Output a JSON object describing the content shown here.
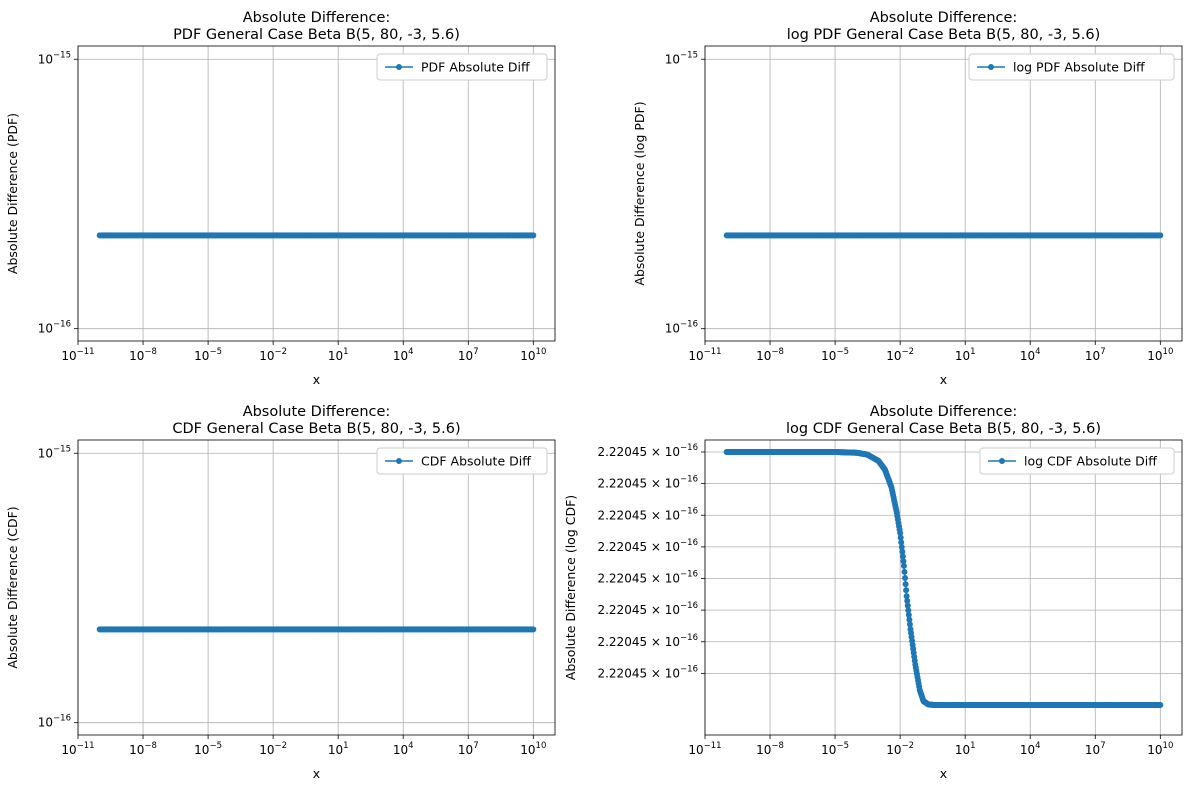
{
  "chart_data": [
    {
      "type": "line",
      "title_line1": "Absolute Difference:",
      "title_line2": "PDF General Case Beta B(5, 80, -3, 5.6)",
      "xlabel": "x",
      "ylabel": "Absolute Difference (PDF)",
      "xscale": "log",
      "yscale": "log",
      "xlim": [
        1e-11,
        100000000000.0
      ],
      "ylim": [
        9e-17,
        1.12e-15
      ],
      "xticks": [
        {
          "value": 1e-11,
          "base": "10",
          "exp": "−11"
        },
        {
          "value": 1e-08,
          "base": "10",
          "exp": "−8"
        },
        {
          "value": 1e-05,
          "base": "10",
          "exp": "−5"
        },
        {
          "value": 0.01,
          "base": "10",
          "exp": "−2"
        },
        {
          "value": 10.0,
          "base": "10",
          "exp": "1"
        },
        {
          "value": 10000.0,
          "base": "10",
          "exp": "4"
        },
        {
          "value": 10000000.0,
          "base": "10",
          "exp": "7"
        },
        {
          "value": 10000000000.0,
          "base": "10",
          "exp": "10"
        }
      ],
      "yticks": [
        {
          "value": 1e-16,
          "base": "10",
          "exp": "−16"
        },
        {
          "value": 1e-15,
          "base": "10",
          "exp": "−15"
        }
      ],
      "grid": true,
      "legend_position": "upper right",
      "color": "#1f77b4",
      "series": [
        {
          "name": "PDF Absolute Diff",
          "x_range": [
            1e-10,
            10000000000.0
          ],
          "points": [
            [
              1e-10,
              2.22e-16
            ],
            [
              10000000000.0,
              2.22e-16
            ]
          ]
        }
      ]
    },
    {
      "type": "line",
      "title_line1": "Absolute Difference:",
      "title_line2": "log PDF General Case Beta B(5, 80, -3, 5.6)",
      "xlabel": "x",
      "ylabel": "Absolute Difference (log PDF)",
      "xscale": "log",
      "yscale": "log",
      "xlim": [
        1e-11,
        100000000000.0
      ],
      "ylim": [
        9e-17,
        1.12e-15
      ],
      "xticks": [
        {
          "value": 1e-11,
          "base": "10",
          "exp": "−11"
        },
        {
          "value": 1e-08,
          "base": "10",
          "exp": "−8"
        },
        {
          "value": 1e-05,
          "base": "10",
          "exp": "−5"
        },
        {
          "value": 0.01,
          "base": "10",
          "exp": "−2"
        },
        {
          "value": 10.0,
          "base": "10",
          "exp": "1"
        },
        {
          "value": 10000.0,
          "base": "10",
          "exp": "4"
        },
        {
          "value": 10000000.0,
          "base": "10",
          "exp": "7"
        },
        {
          "value": 10000000000.0,
          "base": "10",
          "exp": "10"
        }
      ],
      "yticks": [
        {
          "value": 1e-16,
          "base": "10",
          "exp": "−16"
        },
        {
          "value": 1e-15,
          "base": "10",
          "exp": "−15"
        }
      ],
      "grid": true,
      "legend_position": "upper right",
      "color": "#1f77b4",
      "series": [
        {
          "name": "log PDF Absolute Diff",
          "x_range": [
            1e-10,
            10000000000.0
          ],
          "points": [
            [
              1e-10,
              2.22e-16
            ],
            [
              10000000000.0,
              2.22e-16
            ]
          ]
        }
      ]
    },
    {
      "type": "line",
      "title_line1": "Absolute Difference:",
      "title_line2": "CDF General Case Beta B(5, 80, -3, 5.6)",
      "xlabel": "x",
      "ylabel": "Absolute Difference (CDF)",
      "xscale": "log",
      "yscale": "log",
      "xlim": [
        1e-11,
        100000000000.0
      ],
      "ylim": [
        9e-17,
        1.12e-15
      ],
      "xticks": [
        {
          "value": 1e-11,
          "base": "10",
          "exp": "−11"
        },
        {
          "value": 1e-08,
          "base": "10",
          "exp": "−8"
        },
        {
          "value": 1e-05,
          "base": "10",
          "exp": "−5"
        },
        {
          "value": 0.01,
          "base": "10",
          "exp": "−2"
        },
        {
          "value": 10.0,
          "base": "10",
          "exp": "1"
        },
        {
          "value": 10000.0,
          "base": "10",
          "exp": "4"
        },
        {
          "value": 10000000.0,
          "base": "10",
          "exp": "7"
        },
        {
          "value": 10000000000.0,
          "base": "10",
          "exp": "10"
        }
      ],
      "yticks": [
        {
          "value": 1e-16,
          "base": "10",
          "exp": "−16"
        },
        {
          "value": 1e-15,
          "base": "10",
          "exp": "−15"
        }
      ],
      "grid": true,
      "legend_position": "upper right",
      "color": "#1f77b4",
      "series": [
        {
          "name": "CDF Absolute Diff",
          "x_range": [
            1e-10,
            10000000000.0
          ],
          "points": [
            [
              1e-10,
              2.22e-16
            ],
            [
              10000000000.0,
              2.22e-16
            ]
          ]
        }
      ]
    },
    {
      "type": "line",
      "title_line1": "Absolute Difference:",
      "title_line2": "log CDF General Case Beta B(5, 80, -3, 5.6)",
      "xlabel": "x",
      "ylabel": "Absolute Difference (log CDF)",
      "xscale": "log",
      "yscale": "log",
      "xlim": [
        1e-11,
        100000000000.0
      ],
      "ylim": [
        0,
        1
      ],
      "ylim_note": "normalized within a range of about 2.22045e-16",
      "xticks": [
        {
          "value": 1e-11,
          "base": "10",
          "exp": "−11"
        },
        {
          "value": 1e-08,
          "base": "10",
          "exp": "−8"
        },
        {
          "value": 1e-05,
          "base": "10",
          "exp": "−5"
        },
        {
          "value": 0.01,
          "base": "10",
          "exp": "−2"
        },
        {
          "value": 10.0,
          "base": "10",
          "exp": "1"
        },
        {
          "value": 10000.0,
          "base": "10",
          "exp": "4"
        },
        {
          "value": 10000000.0,
          "base": "10",
          "exp": "7"
        },
        {
          "value": 10000000000.0,
          "base": "10",
          "exp": "10"
        }
      ],
      "yticks": [
        {
          "value": 0.125,
          "mantissa": "2.22045",
          "exp": "−16"
        },
        {
          "value": 0.25,
          "mantissa": "2.22045",
          "exp": "−16"
        },
        {
          "value": 0.375,
          "mantissa": "2.22045",
          "exp": "−16"
        },
        {
          "value": 0.5,
          "mantissa": "2.22045",
          "exp": "−16"
        },
        {
          "value": 0.625,
          "mantissa": "2.22045",
          "exp": "−16"
        },
        {
          "value": 0.75,
          "mantissa": "2.22045",
          "exp": "−16"
        },
        {
          "value": 0.875,
          "mantissa": "2.22045",
          "exp": "−16"
        },
        {
          "value": 1.0,
          "mantissa": "2.22045",
          "exp": "−16"
        }
      ],
      "grid": true,
      "legend_position": "upper right",
      "color": "#1f77b4",
      "series": [
        {
          "name": "log CDF Absolute Diff",
          "curve": [
            [
              1e-10,
              1.0
            ],
            [
              1e-05,
              1.0
            ],
            [
              0.0001,
              0.997
            ],
            [
              0.0003,
              0.99
            ],
            [
              0.001,
              0.965
            ],
            [
              0.002,
              0.93
            ],
            [
              0.004,
              0.86
            ],
            [
              0.007,
              0.76
            ],
            [
              0.01,
              0.68
            ],
            [
              0.015,
              0.55
            ],
            [
              0.02,
              0.43
            ],
            [
              0.03,
              0.3
            ],
            [
              0.05,
              0.16
            ],
            [
              0.08,
              0.06
            ],
            [
              0.12,
              0.015
            ],
            [
              0.2,
              0.002
            ],
            [
              0.4,
              0.0
            ],
            [
              10000000000.0,
              0.0
            ]
          ]
        }
      ]
    }
  ]
}
